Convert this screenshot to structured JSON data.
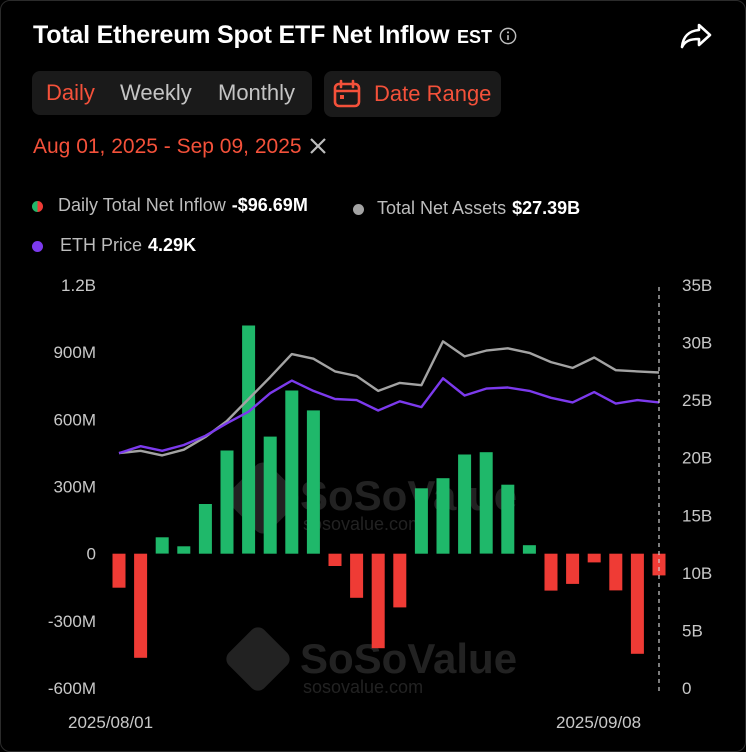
{
  "header": {
    "title": "Total Ethereum Spot ETF Net Inflow",
    "timezone": "EST"
  },
  "tabs": [
    {
      "label": "Daily",
      "active": true
    },
    {
      "label": "Weekly",
      "active": false
    },
    {
      "label": "Monthly",
      "active": false
    }
  ],
  "date_range_button": "Date Range",
  "selected_range": "Aug 01, 2025 - Sep 09, 2025",
  "legend": {
    "daily_inflow_label": "Daily Total Net Inflow",
    "daily_inflow_value": "-$96.69M",
    "net_assets_label": "Total Net Assets",
    "net_assets_value": "$27.39B",
    "eth_price_label": "ETH Price",
    "eth_price_value": "4.29K"
  },
  "watermark": {
    "brand": "SoSoValue",
    "url": "sosovalue.com"
  },
  "colors": {
    "accent": "#f4513a",
    "positive": "#1fb86a",
    "negative": "#ef3b35",
    "assets_line": "#a3a3a3",
    "price_line": "#7c3aed"
  },
  "chart_data": {
    "type": "bar",
    "title": "Total Ethereum Spot ETF Net Inflow",
    "x_tick_labels": [
      "2025/08/01",
      "2025/09/08"
    ],
    "left_axis": {
      "unit": "USD",
      "range": [
        -600,
        1200
      ],
      "ticks": [
        "1.2B",
        "900M",
        "600M",
        "300M",
        "0",
        "-300M",
        "-600M"
      ],
      "tick_values": [
        1200,
        900,
        600,
        300,
        0,
        -300,
        -600
      ]
    },
    "right_axis": {
      "unit": "USD billions",
      "range": [
        0,
        35
      ],
      "ticks": [
        "35B",
        "30B",
        "25B",
        "20B",
        "15B",
        "10B",
        "5B",
        "0"
      ],
      "tick_values": [
        35,
        30,
        25,
        20,
        15,
        10,
        5,
        0
      ]
    },
    "series": [
      {
        "name": "Daily Total Net Inflow (M)",
        "kind": "bar",
        "values": [
          -152,
          -465,
          73,
          33,
          222,
          461,
          1019,
          523,
          729,
          640,
          -55,
          -197,
          -422,
          -240,
          292,
          337,
          443,
          453,
          308,
          38,
          -165,
          -135,
          -39,
          -164,
          -447,
          -97
        ]
      },
      {
        "name": "Total Net Assets (B)",
        "kind": "line",
        "values": [
          20.4,
          20.6,
          20.2,
          20.7,
          21.8,
          23.2,
          25.1,
          27.0,
          29.0,
          28.6,
          27.5,
          27.1,
          25.8,
          26.5,
          26.3,
          30.1,
          28.8,
          29.3,
          29.5,
          29.1,
          28.3,
          27.8,
          28.7,
          27.6,
          27.5,
          27.4
        ]
      },
      {
        "name": "ETH Price (B-axis scale)",
        "kind": "line",
        "values": [
          20.4,
          21.0,
          20.6,
          21.1,
          21.9,
          23.0,
          24.0,
          25.6,
          26.7,
          25.8,
          25.1,
          25.0,
          24.1,
          24.9,
          24.4,
          26.9,
          25.4,
          26.0,
          26.1,
          25.8,
          25.2,
          24.8,
          25.7,
          24.7,
          25.0,
          24.8
        ]
      }
    ]
  }
}
